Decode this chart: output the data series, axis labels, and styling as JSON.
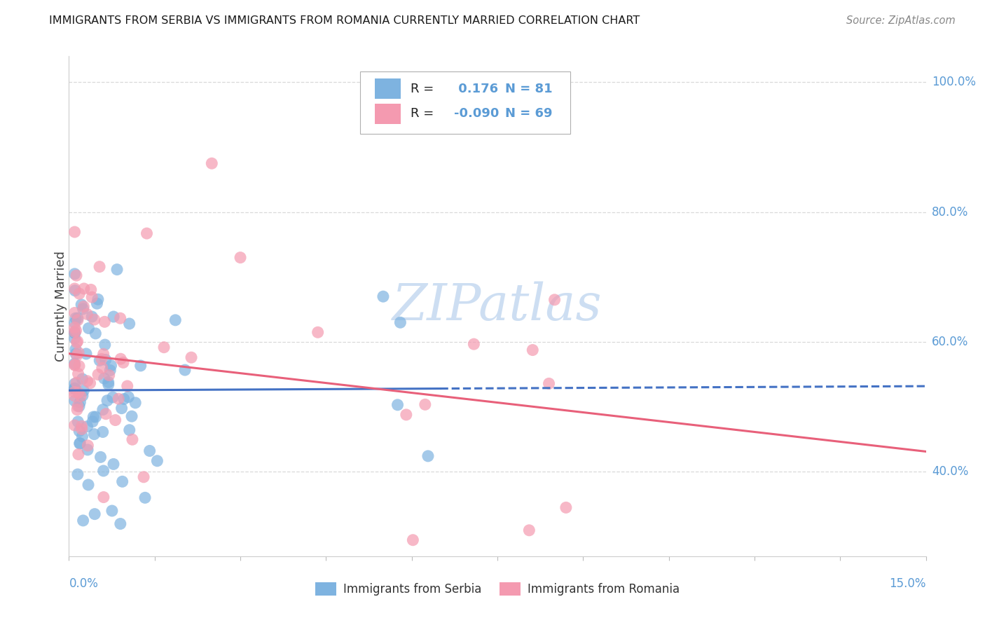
{
  "title": "IMMIGRANTS FROM SERBIA VS IMMIGRANTS FROM ROMANIA CURRENTLY MARRIED CORRELATION CHART",
  "source": "Source: ZipAtlas.com",
  "ylabel": "Currently Married",
  "serbia_color": "#7eb3e0",
  "romania_color": "#f49ab0",
  "trendline_color_blue": "#4472c4",
  "trendline_color_pink": "#e8607a",
  "serbia_r": 0.176,
  "serbia_n": 81,
  "romania_r": -0.09,
  "romania_n": 69,
  "xmin": 0.0,
  "xmax": 0.15,
  "ymin": 0.27,
  "ymax": 1.04,
  "right_ytick_values": [
    1.0,
    0.8,
    0.6,
    0.4
  ],
  "right_ytick_labels": [
    "100.0%",
    "80.0%",
    "60.0%",
    "40.0%"
  ],
  "tick_color": "#5b9bd5",
  "grid_color": "#d9d9d9",
  "grid_style": "--",
  "background_color": "#ffffff",
  "watermark_text": "ZIPatlas",
  "watermark_color": "#c5d9f0",
  "legend_label_serbia": "Immigrants from Serbia",
  "legend_label_romania": "Immigrants from Romania"
}
